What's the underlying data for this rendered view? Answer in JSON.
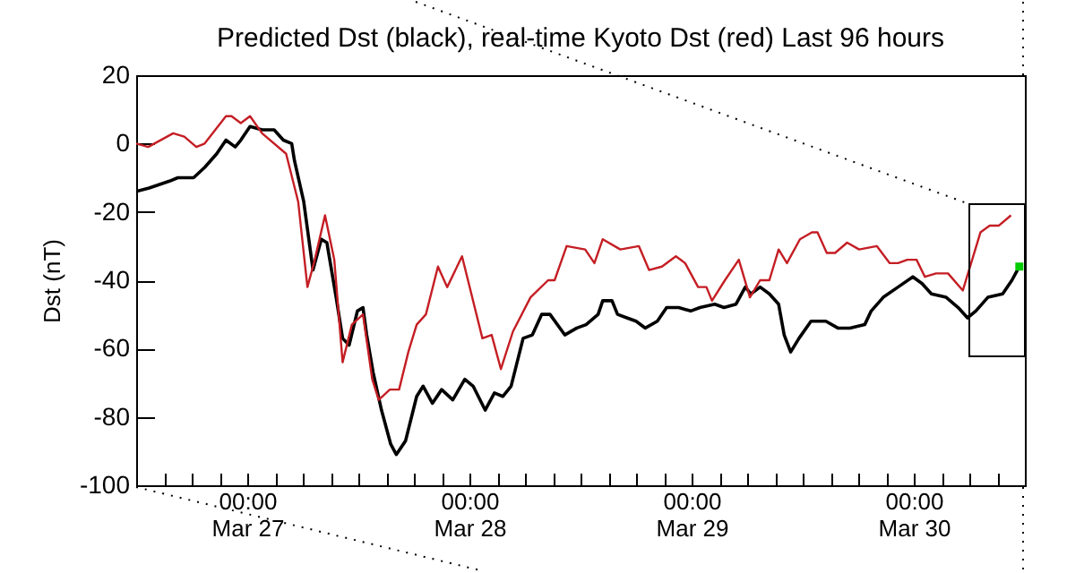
{
  "chart_data": {
    "type": "line",
    "title": "Predicted Dst (black), real-time Kyoto Dst (red)   Last 96 hours",
    "ylabel": "Dst (nT)",
    "xlim": [
      "--03-26T12:00",
      "--03-30T12:00"
    ],
    "ylim": [
      -100,
      20
    ],
    "yticks": [
      -100,
      -80,
      -60,
      -40,
      -20,
      0,
      20
    ],
    "xticks": [
      {
        "value": "--03-26T15:00",
        "label": null
      },
      {
        "value": "--03-26T18:00",
        "label": null
      },
      {
        "value": "--03-26T21:00",
        "label": null
      },
      {
        "value": "--03-27T00:00",
        "label": "00:00\nMar 27"
      },
      {
        "value": "--03-27T03:00",
        "label": null
      },
      {
        "value": "--03-27T06:00",
        "label": null
      },
      {
        "value": "--03-27T09:00",
        "label": null
      },
      {
        "value": "--03-27T12:00",
        "label": null
      },
      {
        "value": "--03-27T15:00",
        "label": null
      },
      {
        "value": "--03-27T18:00",
        "label": null
      },
      {
        "value": "--03-27T21:00",
        "label": null
      },
      {
        "value": "--03-28T00:00",
        "label": "00:00\nMar 28"
      },
      {
        "value": "--03-28T03:00",
        "label": null
      },
      {
        "value": "--03-28T06:00",
        "label": null
      },
      {
        "value": "--03-28T09:00",
        "label": null
      },
      {
        "value": "--03-28T12:00",
        "label": null
      },
      {
        "value": "--03-28T15:00",
        "label": null
      },
      {
        "value": "--03-28T18:00",
        "label": null
      },
      {
        "value": "--03-28T21:00",
        "label": null
      },
      {
        "value": "--03-29T00:00",
        "label": "00:00\nMar 29"
      },
      {
        "value": "--03-29T03:00",
        "label": null
      },
      {
        "value": "--03-29T06:00",
        "label": null
      },
      {
        "value": "--03-29T09:00",
        "label": null
      },
      {
        "value": "--03-29T12:00",
        "label": null
      },
      {
        "value": "--03-29T15:00",
        "label": null
      },
      {
        "value": "--03-29T18:00",
        "label": null
      },
      {
        "value": "--03-29T21:00",
        "label": null
      },
      {
        "value": "--03-30T00:00",
        "label": "00:00\nMar 30"
      },
      {
        "value": "--03-30T03:00",
        "label": null
      },
      {
        "value": "--03-30T06:00",
        "label": null
      },
      {
        "value": "--03-30T09:00",
        "label": null
      }
    ],
    "series": [
      {
        "color": "#000000",
        "x": [
          "--03-26T12:00",
          "--03-26T13:24",
          "--03-26T15:36",
          "--03-26T16:30",
          "--03-26T18:12",
          "--03-26T19:24",
          "--03-26T20:42",
          "--03-26T21:42",
          "--03-26T22:42",
          "--03-26T23:18",
          "--03-27T00:18",
          "--03-27T01:36",
          "--03-27T02:54",
          "--03-27T03:54",
          "--03-27T04:48",
          "--03-27T05:06",
          "--03-27T06:06",
          "--03-27T07:06",
          "--03-27T08:00",
          "--03-27T08:36",
          "--03-27T09:36",
          "--03-27T10:18",
          "--03-27T11:00",
          "--03-27T11:54",
          "--03-27T12:30",
          "--03-27T12:54",
          "--03-27T13:36",
          "--03-27T14:30",
          "--03-27T15:30",
          "--03-27T16:06",
          "--03-27T17:06",
          "--03-27T18:18",
          "--03-27T19:00",
          "--03-27T20:00",
          "--03-27T21:00",
          "--03-27T22:12",
          "--03-27T23:30",
          "--03-28T00:24",
          "--03-28T01:42",
          "--03-28T02:42",
          "--03-28T03:36",
          "--03-28T04:30",
          "--03-28T05:48",
          "--03-28T06:48",
          "--03-28T07:48",
          "--03-28T08:42",
          "--03-28T10:18",
          "--03-28T11:36",
          "--03-28T12:36",
          "--03-28T13:54",
          "--03-28T14:24",
          "--03-28T15:24",
          "--03-28T16:00",
          "--03-28T17:00",
          "--03-28T18:00",
          "--03-28T19:00",
          "--03-28T20:18",
          "--03-28T21:18",
          "--03-28T22:36",
          "--03-28T23:54",
          "--03-29T00:54",
          "--03-29T02:30",
          "--03-29T03:30",
          "--03-29T04:48",
          "--03-29T05:48",
          "--03-29T06:24",
          "--03-29T07:24",
          "--03-29T08:24",
          "--03-29T09:24",
          "--03-29T10:00",
          "--03-29T10:42",
          "--03-29T11:36",
          "--03-29T12:54",
          "--03-29T14:30",
          "--03-29T15:48",
          "--03-29T17:06",
          "--03-29T18:42",
          "--03-29T19:24",
          "--03-29T20:42",
          "--03-29T22:18",
          "--03-29T23:54",
          "--03-30T00:54",
          "--03-30T01:54",
          "--03-30T03:30",
          "--03-30T04:48",
          "--03-30T05:48",
          "--03-30T06:42",
          "--03-30T08:00",
          "--03-30T09:36",
          "--03-30T10:36",
          "--03-30T11:12"
        ],
        "values": [
          -14,
          -13,
          -11,
          -10,
          -10,
          -7,
          -3,
          1,
          -1,
          1,
          5,
          4,
          4,
          1,
          0,
          -5,
          -17,
          -37,
          -28,
          -29,
          -45,
          -57,
          -59,
          -49,
          -48,
          -56,
          -67,
          -78,
          -88,
          -91,
          -87,
          -74,
          -71,
          -76,
          -72,
          -75,
          -69,
          -71,
          -78,
          -73,
          -74,
          -71,
          -57,
          -56,
          -50,
          -50,
          -56,
          -54,
          -53,
          -50,
          -46,
          -46,
          -50,
          -51,
          -52,
          -54,
          -52,
          -48,
          -48,
          -49,
          -48,
          -47,
          -48,
          -47,
          -42,
          -44,
          -42,
          -44,
          -47,
          -56,
          -61,
          -57,
          -52,
          -52,
          -54,
          -54,
          -53,
          -49,
          -45,
          -42,
          -39,
          -41,
          -44,
          -45,
          -48,
          -51,
          -49,
          -45,
          -44,
          -40,
          -37
        ]
      },
      {
        "color": "#c41e24",
        "x": [
          "--03-26T12:00",
          "--03-26T13:18",
          "--03-26T16:00",
          "--03-26T17:12",
          "--03-26T18:30",
          "--03-26T19:24",
          "--03-26T21:42",
          "--03-26T22:18",
          "--03-26T23:18",
          "--03-27T00:18",
          "--03-27T01:36",
          "--03-27T04:12",
          "--03-27T05:30",
          "--03-27T06:30",
          "--03-27T07:12",
          "--03-27T08:24",
          "--03-27T09:24",
          "--03-27T10:18",
          "--03-27T11:18",
          "--03-27T12:30",
          "--03-27T13:30",
          "--03-27T14:12",
          "--03-27T15:24",
          "--03-27T16:24",
          "--03-27T17:24",
          "--03-27T18:18",
          "--03-27T19:18",
          "--03-27T20:36",
          "--03-27T21:36",
          "--03-27T23:12",
          "--03-28T01:24",
          "--03-28T02:24",
          "--03-28T03:24",
          "--03-28T04:42",
          "--03-28T06:36",
          "--03-28T08:30",
          "--03-28T09:12",
          "--03-28T10:30",
          "--03-28T12:30",
          "--03-28T13:30",
          "--03-28T14:24",
          "--03-28T16:18",
          "--03-28T18:18",
          "--03-28T19:24",
          "--03-28T20:48",
          "--03-28T22:18",
          "--03-28T23:18",
          "--03-29T00:42",
          "--03-29T01:36",
          "--03-29T02:12",
          "--03-29T03:36",
          "--03-29T05:06",
          "--03-29T06:18",
          "--03-29T07:24",
          "--03-29T08:24",
          "--03-29T09:24",
          "--03-29T10:18",
          "--03-29T11:42",
          "--03-29T13:00",
          "--03-29T13:36",
          "--03-29T14:36",
          "--03-29T15:30",
          "--03-29T16:48",
          "--03-29T18:06",
          "--03-29T20:00",
          "--03-29T21:24",
          "--03-29T22:18",
          "--03-29T23:18",
          "--03-30T00:18",
          "--03-30T01:12",
          "--03-30T02:24",
          "--03-30T03:42",
          "--03-30T05:18",
          "--03-30T07:12",
          "--03-30T08:12",
          "--03-30T09:12",
          "--03-30T10:30"
        ],
        "values": [
          0,
          -1,
          3,
          2,
          -1,
          0,
          8,
          8,
          6,
          8,
          3,
          -3,
          -17,
          -42,
          -35,
          -21,
          -34,
          -64,
          -53,
          -50,
          -69,
          -75,
          -72,
          -72,
          -61,
          -53,
          -50,
          -36,
          -42,
          -33,
          -57,
          -56,
          -66,
          -55,
          -45,
          -40,
          -40,
          -30,
          -31,
          -35,
          -28,
          -31,
          -30,
          -37,
          -36,
          -33,
          -35,
          -42,
          -42,
          -46,
          -40,
          -34,
          -45,
          -40,
          -40,
          -31,
          -35,
          -28,
          -26,
          -26,
          -32,
          -32,
          -29,
          -31,
          -30,
          -35,
          -35,
          -34,
          -34,
          -39,
          -38,
          -38,
          -43,
          -26,
          -24,
          -24,
          -21
        ]
      },
      {
        "type": "scatter",
        "marker": "square",
        "color": "#00cc00",
        "x": [
          "--03-30T11:24"
        ],
        "values": [
          -36
        ]
      }
    ]
  }
}
